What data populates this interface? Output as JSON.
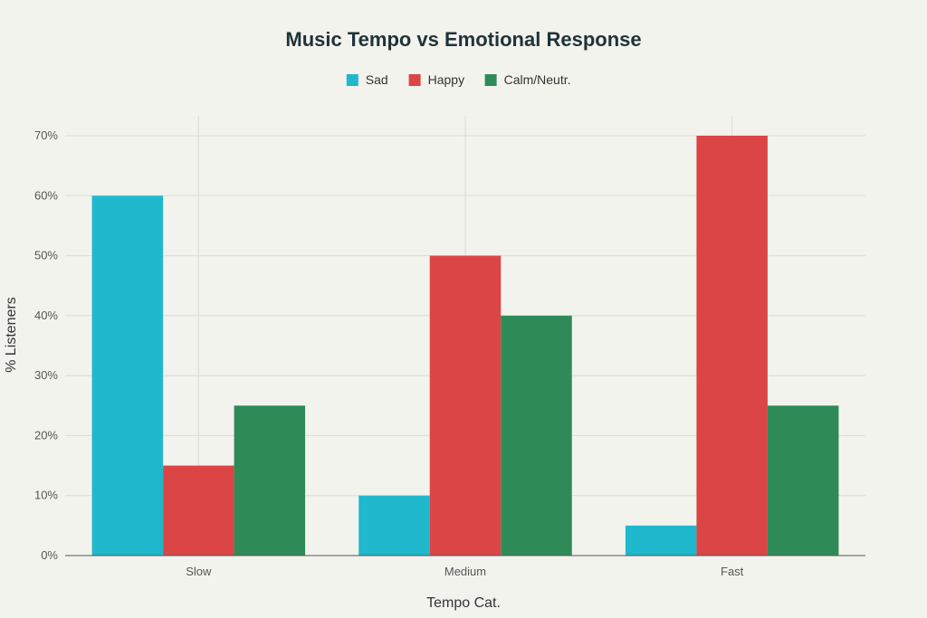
{
  "chart_data": {
    "type": "bar",
    "title": "Music Tempo vs Emotional Response",
    "xlabel": "Tempo Cat.",
    "ylabel": "% Listeners",
    "categories": [
      "Slow",
      "Medium",
      "Fast"
    ],
    "series": [
      {
        "name": "Sad",
        "values": [
          60,
          10,
          5
        ],
        "color": "#1fb8cd"
      },
      {
        "name": "Happy",
        "values": [
          15,
          50,
          70
        ],
        "color": "#db4545"
      },
      {
        "name": "Calm/Neutr.",
        "values": [
          25,
          40,
          25
        ],
        "color": "#2e8b57"
      }
    ],
    "ylim": [
      0,
      70
    ],
    "yticks": [
      "0%",
      "10%",
      "20%",
      "30%",
      "40%",
      "50%",
      "60%",
      "70%"
    ],
    "grid": true,
    "legend": "top-center"
  }
}
